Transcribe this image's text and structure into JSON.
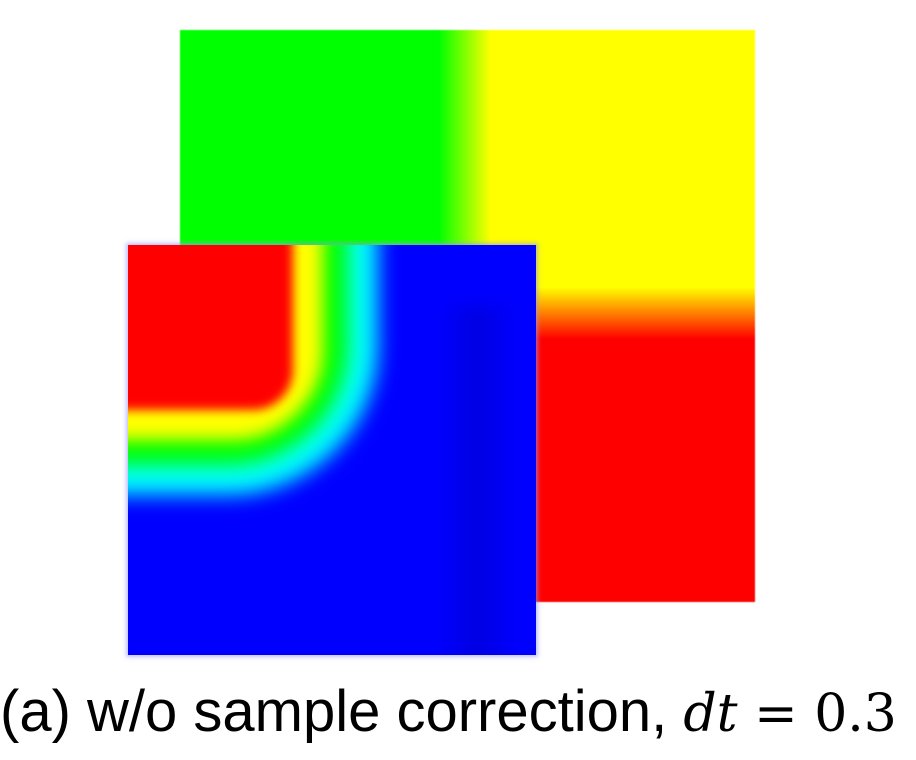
{
  "figure": {
    "colors": {
      "green": "#00ff00",
      "yellow": "#ffff00",
      "red": "#ff0000",
      "blue": "#0000ff",
      "cyan": "#00ffff"
    },
    "caption": {
      "label": "(a) w/o sample correction,",
      "math_var": "dt",
      "math_op": " = ",
      "math_value": "0.3"
    }
  }
}
